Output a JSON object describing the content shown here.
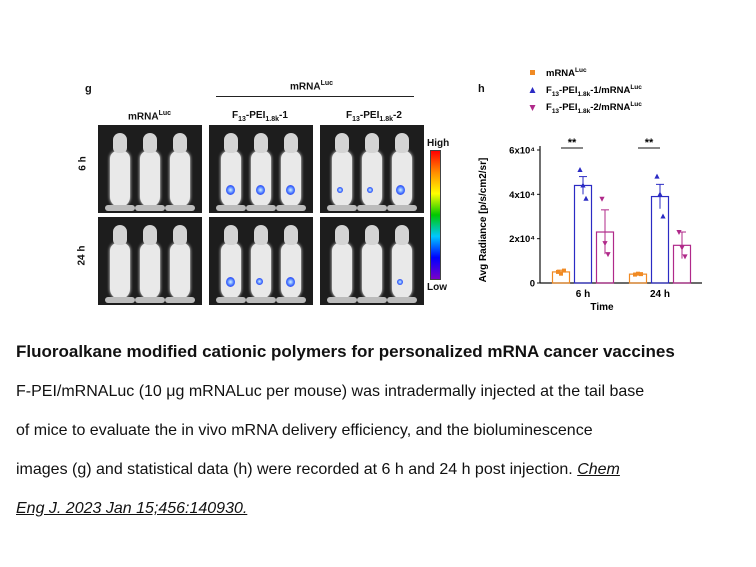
{
  "figure": {
    "panel_g": {
      "letter": "g",
      "header": "mRNALuc",
      "groups": [
        "mRNALuc",
        "F13-PEI1.8k-1",
        "F13-PEI1.8k-2"
      ],
      "times": [
        "6 h",
        "24 h"
      ],
      "scale_high": "High",
      "scale_low": "Low"
    },
    "panel_h_letter": "h"
  },
  "chart_data": {
    "type": "bar",
    "categories": [
      "6 h",
      "24 h"
    ],
    "xlabel": "Time",
    "ylabel": "Avg Radiance [p/s/cm2/sr]",
    "ylim": [
      0,
      60000
    ],
    "yticks": [
      "0",
      "2x10⁴",
      "4x10⁴",
      "6x10⁴"
    ],
    "significance": [
      "**",
      "**"
    ],
    "legend_position": "top",
    "series": [
      {
        "name": "mRNALuc",
        "color": "#f08a24",
        "values": [
          5000,
          4000
        ],
        "errors": [
          800,
          500
        ],
        "points": [
          [
            5000,
            4200,
            5600
          ],
          [
            3800,
            4200,
            4000
          ]
        ]
      },
      {
        "name": "F13-PEI1.8k-1/mRNALuc",
        "color": "#2b2bc4",
        "values": [
          44000,
          39000
        ],
        "errors": [
          4000,
          5500
        ],
        "points": [
          [
            51000,
            44000,
            38000
          ],
          [
            48000,
            40000,
            30000
          ]
        ]
      },
      {
        "name": "F13-PEI1.8k-2/mRNALuc",
        "color": "#b0298a",
        "values": [
          23000,
          17000
        ],
        "errors": [
          10000,
          6000
        ],
        "points": [
          [
            38000,
            18000,
            13000
          ],
          [
            23000,
            16000,
            12000
          ]
        ]
      }
    ]
  },
  "caption": {
    "title": "Fluoroalkane modified cationic polymers for personalized mRNA cancer vaccines",
    "lines": [
      "F-PEI/mRNALuc (10 μg mRNALuc per mouse) was intradermally injected at the tail base",
      "of mice to evaluate the in vivo mRNA delivery efficiency, and the bioluminescence",
      "images (g) and statistical data (h) were recorded at 6 h and 24 h post injection."
    ],
    "citation_part1": "Chem",
    "citation_part2": "Eng J. 2023 Jan 15;456:140930."
  }
}
